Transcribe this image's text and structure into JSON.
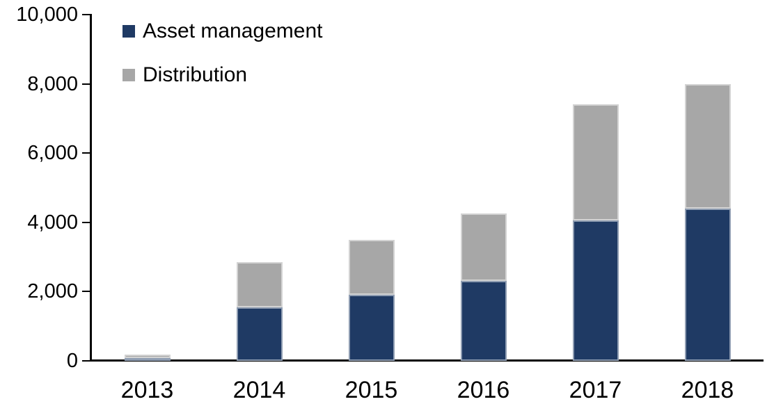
{
  "chart_data": {
    "type": "bar",
    "stacked": true,
    "categories": [
      "2013",
      "2014",
      "2015",
      "2016",
      "2017",
      "2018"
    ],
    "series": [
      {
        "name": "Asset management",
        "color": "#1F3A64",
        "values": [
          90,
          1550,
          1900,
          2300,
          4050,
          4400
        ]
      },
      {
        "name": "Distribution",
        "color": "#A7A7A7",
        "values": [
          100,
          1300,
          1600,
          1950,
          3350,
          3600
        ]
      }
    ],
    "ylim": [
      0,
      10000
    ],
    "ytick_interval": 2000,
    "ytick_labels": [
      "0",
      "2,000",
      "4,000",
      "6,000",
      "8,000",
      "10,000"
    ],
    "grid": false,
    "legend_position": "top-left",
    "axis_color": "#000000",
    "background_color": "#FFFFFF"
  }
}
